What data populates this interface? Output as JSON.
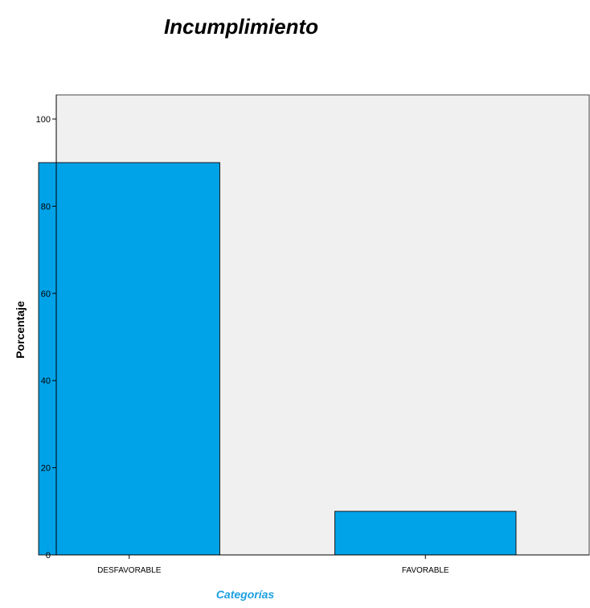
{
  "chart_data": {
    "type": "bar",
    "title": "Incumplimiento",
    "xlabel": "Categorías",
    "ylabel": "Porcentaje",
    "categories": [
      "DESFAVORABLE",
      "FAVORABLE"
    ],
    "values": [
      90,
      10
    ],
    "ylim": [
      0,
      100
    ],
    "yticks": [
      0,
      20,
      40,
      60,
      80,
      100
    ],
    "grid": false,
    "colors": {
      "bar": "#00a2e8",
      "bar_stroke": "#1a1a1a",
      "plot_background": "#f0f0f0",
      "xlabel": "#1a9fe0"
    }
  }
}
